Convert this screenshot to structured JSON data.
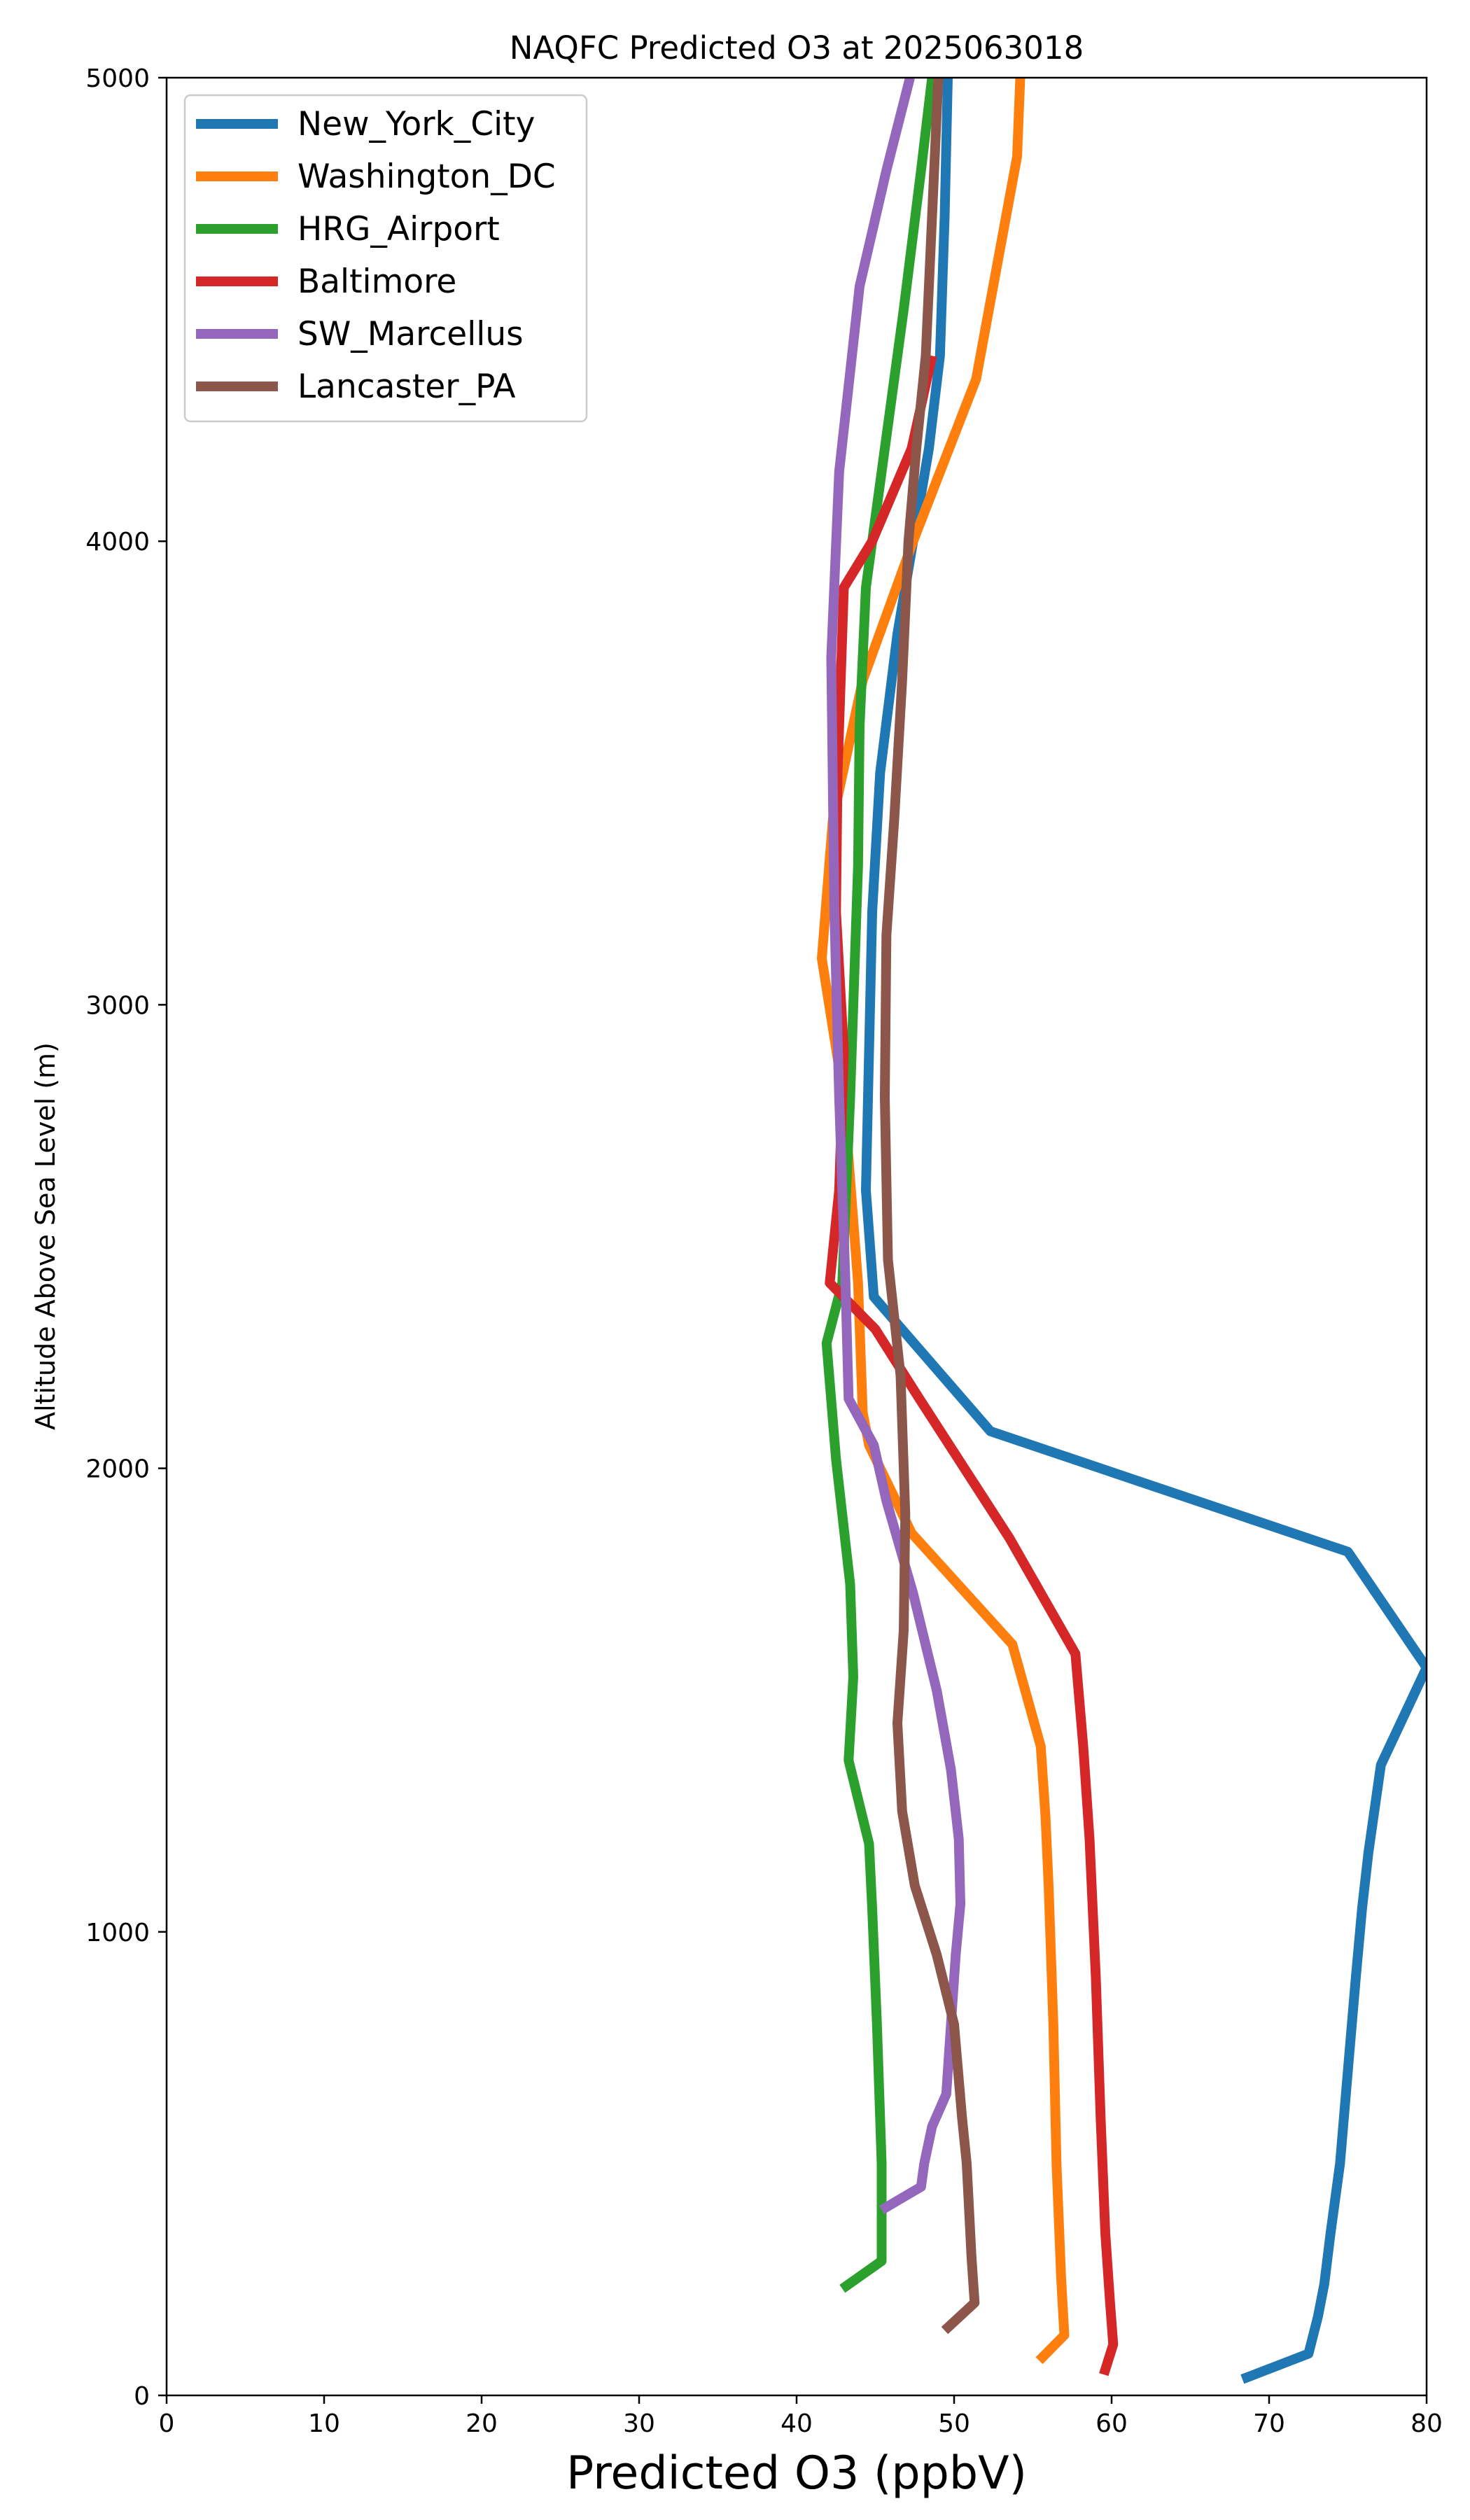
{
  "chart_data": {
    "type": "line",
    "title": "NAQFC Predicted O3 at 2025063018",
    "xlabel": "Predicted O3 (ppbV)",
    "ylabel": "Altitude Above Sea Level (m)",
    "xlim": [
      0,
      80
    ],
    "ylim": [
      0,
      5000
    ],
    "xticks": [
      0,
      10,
      20,
      30,
      40,
      50,
      60,
      70,
      80
    ],
    "yticks": [
      0,
      1000,
      2000,
      3000,
      4000,
      5000
    ],
    "grid": false,
    "legend_position": "top-left",
    "series": [
      {
        "name": "New_York_City",
        "color": "#1f77b4",
        "points": [
          [
            68.3,
            35
          ],
          [
            72.5,
            90
          ],
          [
            73.1,
            170
          ],
          [
            73.5,
            240
          ],
          [
            73.9,
            350
          ],
          [
            74.5,
            500
          ],
          [
            75.0,
            700
          ],
          [
            75.5,
            900
          ],
          [
            75.9,
            1050
          ],
          [
            76.3,
            1170
          ],
          [
            77.1,
            1360
          ],
          [
            80.0,
            1570
          ],
          [
            75.0,
            1820
          ],
          [
            52.3,
            2080
          ],
          [
            44.9,
            2370
          ],
          [
            44.4,
            2600
          ],
          [
            44.6,
            2900
          ],
          [
            44.8,
            3200
          ],
          [
            45.3,
            3500
          ],
          [
            46.4,
            3800
          ],
          [
            47.4,
            4000
          ],
          [
            48.4,
            4200
          ],
          [
            49.1,
            4400
          ],
          [
            49.4,
            4700
          ],
          [
            49.6,
            5000
          ]
        ]
      },
      {
        "name": "Washington_DC",
        "color": "#ff7f0e",
        "points": [
          [
            55.4,
            75
          ],
          [
            57.0,
            130
          ],
          [
            56.8,
            250
          ],
          [
            56.5,
            500
          ],
          [
            56.3,
            800
          ],
          [
            56.0,
            1100
          ],
          [
            55.8,
            1250
          ],
          [
            55.5,
            1400
          ],
          [
            53.7,
            1620
          ],
          [
            47.3,
            1860
          ],
          [
            44.6,
            2050
          ],
          [
            44.2,
            2120
          ],
          [
            43.9,
            2400
          ],
          [
            43.0,
            2800
          ],
          [
            41.6,
            3100
          ],
          [
            42.3,
            3400
          ],
          [
            44.2,
            3700
          ],
          [
            47.4,
            4000
          ],
          [
            51.4,
            4350
          ],
          [
            54.0,
            4830
          ],
          [
            54.2,
            5000
          ]
        ]
      },
      {
        "name": "HRG_Airport",
        "color": "#2ca02c",
        "points": [
          [
            42.9,
            230
          ],
          [
            45.4,
            290
          ],
          [
            45.4,
            500
          ],
          [
            45.1,
            800
          ],
          [
            44.8,
            1050
          ],
          [
            44.6,
            1190
          ],
          [
            43.3,
            1370
          ],
          [
            43.6,
            1550
          ],
          [
            43.4,
            1750
          ],
          [
            42.5,
            2020
          ],
          [
            41.9,
            2270
          ],
          [
            42.9,
            2400
          ],
          [
            43.4,
            2800
          ],
          [
            43.9,
            3300
          ],
          [
            44.0,
            3600
          ],
          [
            44.4,
            3900
          ],
          [
            45.6,
            4200
          ],
          [
            46.8,
            4500
          ],
          [
            47.9,
            4800
          ],
          [
            48.6,
            5000
          ]
        ]
      },
      {
        "name": "Baltimore",
        "color": "#d62728",
        "points": [
          [
            59.5,
            45
          ],
          [
            60.1,
            110
          ],
          [
            59.9,
            200
          ],
          [
            59.6,
            350
          ],
          [
            59.3,
            600
          ],
          [
            59.0,
            900
          ],
          [
            58.6,
            1200
          ],
          [
            58.2,
            1400
          ],
          [
            57.7,
            1600
          ],
          [
            53.5,
            1850
          ],
          [
            47.8,
            2150
          ],
          [
            45.0,
            2300
          ],
          [
            42.1,
            2400
          ],
          [
            42.7,
            2600
          ],
          [
            43.0,
            2900
          ],
          [
            42.5,
            3200
          ],
          [
            42.6,
            3500
          ],
          [
            43.0,
            3900
          ],
          [
            44.8,
            4000
          ],
          [
            47.3,
            4200
          ],
          [
            48.6,
            4400
          ]
        ]
      },
      {
        "name": "SW_Marcellus",
        "color": "#9467bd",
        "points": [
          [
            45.4,
            400
          ],
          [
            47.9,
            450
          ],
          [
            48.1,
            500
          ],
          [
            48.6,
            580
          ],
          [
            49.5,
            650
          ],
          [
            49.8,
            800
          ],
          [
            50.1,
            950
          ],
          [
            50.4,
            1060
          ],
          [
            50.3,
            1200
          ],
          [
            49.8,
            1350
          ],
          [
            48.9,
            1520
          ],
          [
            47.4,
            1730
          ],
          [
            45.7,
            1930
          ],
          [
            44.9,
            2050
          ],
          [
            43.3,
            2150
          ],
          [
            43.1,
            2400
          ],
          [
            42.7,
            2800
          ],
          [
            42.4,
            3200
          ],
          [
            42.2,
            3750
          ],
          [
            42.7,
            4150
          ],
          [
            44.0,
            4550
          ],
          [
            45.7,
            4800
          ],
          [
            47.2,
            5000
          ]
        ]
      },
      {
        "name": "Lancaster_PA",
        "color": "#8c564b",
        "points": [
          [
            49.4,
            140
          ],
          [
            51.3,
            200
          ],
          [
            51.1,
            300
          ],
          [
            50.8,
            500
          ],
          [
            50.5,
            600
          ],
          [
            50.0,
            800
          ],
          [
            48.9,
            950
          ],
          [
            47.5,
            1100
          ],
          [
            46.7,
            1260
          ],
          [
            46.4,
            1450
          ],
          [
            46.8,
            1650
          ],
          [
            46.9,
            1900
          ],
          [
            46.6,
            2200
          ],
          [
            45.8,
            2450
          ],
          [
            45.6,
            2800
          ],
          [
            45.7,
            3150
          ],
          [
            46.2,
            3400
          ],
          [
            46.7,
            3700
          ],
          [
            47.1,
            4000
          ],
          [
            47.6,
            4200
          ],
          [
            48.2,
            4400
          ],
          [
            48.6,
            4700
          ],
          [
            49.0,
            5000
          ]
        ]
      }
    ]
  }
}
